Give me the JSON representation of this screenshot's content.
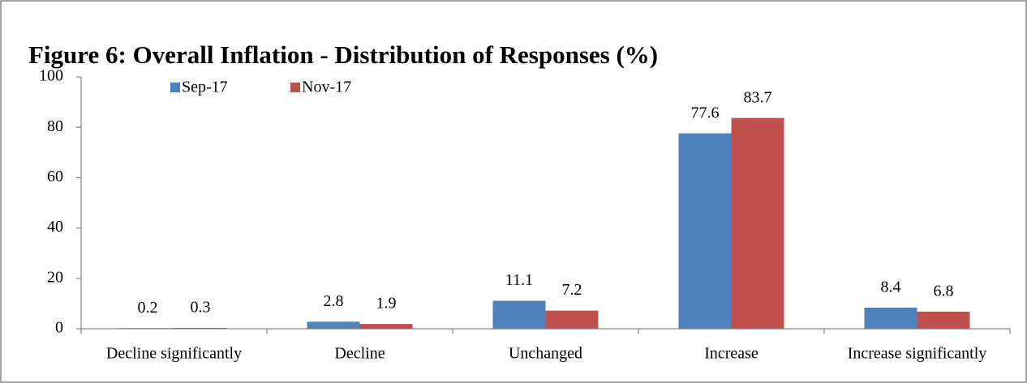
{
  "chart_data": {
    "type": "bar",
    "title": "Figure 6: Overall Inflation - Distribution of Responses (%)",
    "categories": [
      "Decline significantly",
      "Decline",
      "Unchanged",
      "Increase",
      "Increase significantly"
    ],
    "series": [
      {
        "name": "Sep-17",
        "color": "#4f81bd",
        "values": [
          0.2,
          2.8,
          11.1,
          77.6,
          8.4
        ]
      },
      {
        "name": "Nov-17",
        "color": "#c0504d",
        "values": [
          0.3,
          1.9,
          7.2,
          83.7,
          6.8
        ]
      }
    ],
    "ylim": [
      0,
      100
    ],
    "yticks": [
      0,
      20,
      40,
      60,
      80,
      100
    ],
    "grid": false,
    "legend": "top-left"
  }
}
